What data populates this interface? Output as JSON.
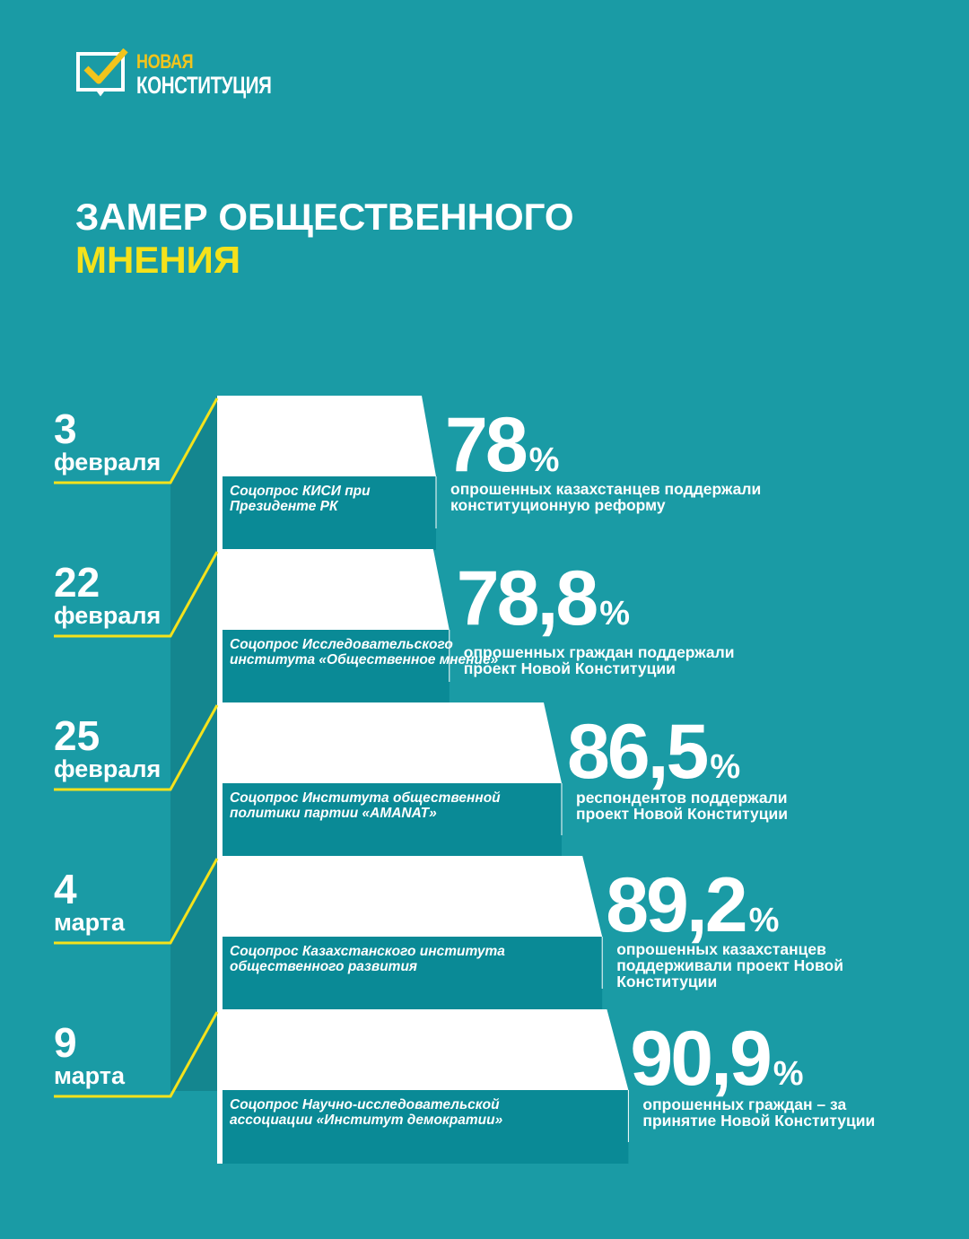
{
  "logo": {
    "line1": "НОВАЯ",
    "line2": "КОНСТИТУЦИЯ"
  },
  "title": {
    "line1": "ЗАМЕР ОБЩЕСТВЕННОГО",
    "line2": "МНЕНИЯ"
  },
  "colors": {
    "background": "#1a9ba5",
    "accent": "#f5e21b",
    "panel": "#0a8a96",
    "bar": "#ffffff"
  },
  "chart_data": {
    "type": "bar",
    "orientation": "horizontal",
    "categories": [
      "3 февраля",
      "22 февраля",
      "25 февраля",
      "4 марта",
      "9 марта"
    ],
    "values": [
      78,
      78.8,
      86.5,
      89.2,
      90.9
    ],
    "unit": "%",
    "items": [
      {
        "day": "3",
        "month": "февраля",
        "value": "78",
        "source": [
          "Соцопрос КИСИ при",
          "Президенте РК"
        ],
        "description": [
          "опрошенных казахстанцев поддержали",
          "конституционную реформу"
        ]
      },
      {
        "day": "22",
        "month": "февраля",
        "value": "78,8",
        "source": [
          "Соцопрос Исследовательского",
          "института «Общественное мнение»"
        ],
        "description": [
          "опрошенных граждан поддержали",
          "проект Новой Конституции"
        ]
      },
      {
        "day": "25",
        "month": "февраля",
        "value": "86,5",
        "source": [
          "Соцопрос Института общественной",
          "политики партии «AMANAT»"
        ],
        "description": [
          "респондентов поддержали",
          "проект Новой Конституции"
        ]
      },
      {
        "day": "4",
        "month": "марта",
        "value": "89,2",
        "source": [
          "Соцопрос Казахстанского института",
          "общественного развития"
        ],
        "description": [
          "опрошенных казахстанцев",
          "поддерживали проект Новой",
          "Конституции"
        ]
      },
      {
        "day": "9",
        "month": "марта",
        "value": "90,9",
        "source": [
          "Соцопрос Научно-исследовательской",
          "ассоциации «Институт демократии»"
        ],
        "description": [
          "опрошенных граждан – за",
          "принятие Новой Конституции"
        ]
      }
    ],
    "percent_sign": "%"
  }
}
